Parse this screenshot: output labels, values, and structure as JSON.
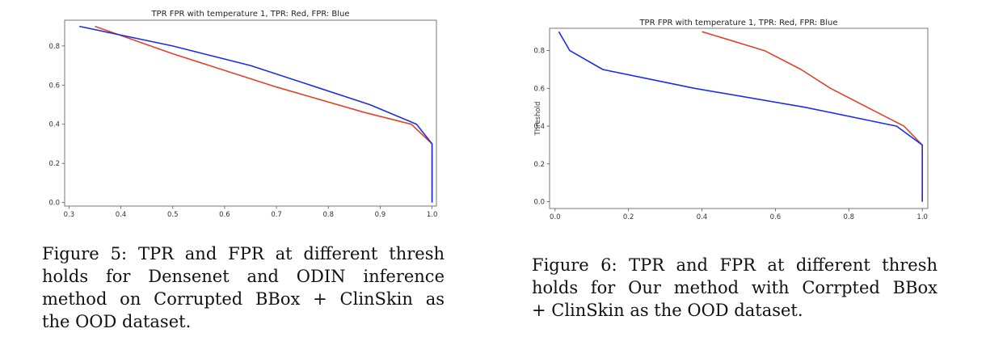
{
  "chart_data": [
    {
      "type": "line",
      "title": "TPR FPR with temperature 1, TPR: Red, FPR: Blue",
      "xlabel": "",
      "ylabel": "",
      "xlim": [
        0.3,
        1.0
      ],
      "ylim": [
        0.0,
        0.9
      ],
      "xticks": [
        "0.3",
        "0.4",
        "0.5",
        "0.6",
        "0.7",
        "0.8",
        "0.9",
        "1.0"
      ],
      "yticks": [
        "0.0",
        "0.2",
        "0.4",
        "0.6",
        "0.8"
      ],
      "grid": false,
      "series": [
        {
          "color": "#d9442f",
          "points": [
            [
              0.35,
              0.9
            ],
            [
              0.5,
              0.76
            ],
            [
              0.7,
              0.59
            ],
            [
              0.87,
              0.46
            ],
            [
              0.96,
              0.4
            ],
            [
              1.0,
              0.3
            ],
            [
              1.0,
              0.0
            ]
          ]
        },
        {
          "color": "#1f2fd6",
          "points": [
            [
              0.32,
              0.9
            ],
            [
              0.5,
              0.8
            ],
            [
              0.65,
              0.7
            ],
            [
              0.88,
              0.5
            ],
            [
              0.97,
              0.4
            ],
            [
              1.0,
              0.3
            ],
            [
              1.0,
              0.0
            ]
          ]
        }
      ]
    },
    {
      "type": "line",
      "title": "TPR FPR with temperature 1, TPR: Red, FPR: Blue",
      "xlabel": "",
      "ylabel": "Threshold",
      "xlim": [
        0.0,
        1.0
      ],
      "ylim": [
        0.0,
        0.9
      ],
      "xticks": [
        "0.0",
        "0.2",
        "0.4",
        "0.6",
        "0.8",
        "1.0"
      ],
      "yticks": [
        "0.0",
        "0.2",
        "0.4",
        "0.6",
        "0.8"
      ],
      "grid": false,
      "series": [
        {
          "color": "#d9442f",
          "points": [
            [
              0.4,
              0.9
            ],
            [
              0.57,
              0.8
            ],
            [
              0.67,
              0.7
            ],
            [
              0.75,
              0.6
            ],
            [
              0.85,
              0.5
            ],
            [
              0.95,
              0.4
            ],
            [
              1.0,
              0.3
            ],
            [
              1.0,
              0.0
            ]
          ]
        },
        {
          "color": "#1f2fd6",
          "points": [
            [
              0.01,
              0.9
            ],
            [
              0.04,
              0.8
            ],
            [
              0.13,
              0.7
            ],
            [
              0.38,
              0.6
            ],
            [
              0.68,
              0.5
            ],
            [
              0.93,
              0.4
            ],
            [
              1.0,
              0.3
            ],
            [
              1.0,
              0.0
            ]
          ]
        }
      ]
    }
  ],
  "captions": {
    "fig5": {
      "lines": [
        "Figure 5: TPR and FPR at different thresh",
        "holds for Densenet and ODIN inference",
        "method on Corrupted BBox + ClinSkin as",
        "the OOD dataset."
      ]
    },
    "fig6": {
      "lines": [
        "Figure 6: TPR and FPR at different thresh",
        "holds for Our method with Corrpted BBox",
        "+ ClinSkin as the OOD dataset."
      ]
    }
  }
}
